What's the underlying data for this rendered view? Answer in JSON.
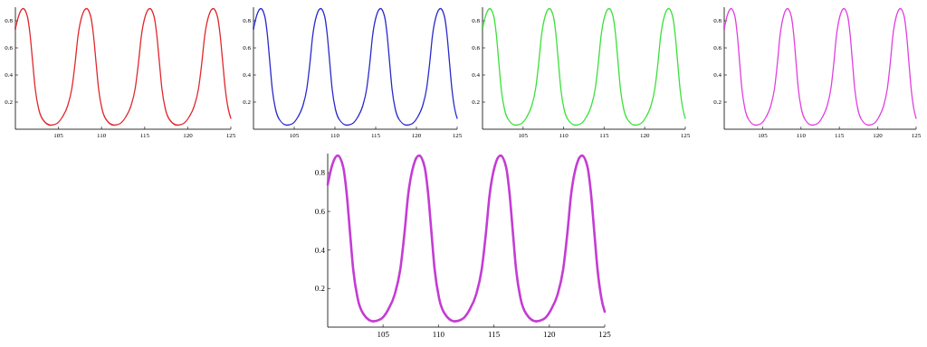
{
  "chart_data": [
    {
      "type": "line",
      "x": [
        100,
        100.4,
        100.9,
        101.4,
        101.7,
        102.0,
        102.3,
        102.7,
        103.2,
        104.1,
        104.75,
        105.45,
        106.05,
        106.55,
        106.95,
        107.25,
        107.75,
        108.25,
        108.75,
        109.05,
        109.35,
        109.65,
        110.05,
        110.55,
        111.45,
        112.1,
        112.8,
        113.4,
        113.9,
        114.3,
        114.6,
        115.1,
        115.6,
        116.1,
        116.4,
        116.7,
        117.0,
        117.4,
        117.9,
        118.8,
        119.45,
        120.15,
        120.75,
        121.25,
        121.65,
        121.95,
        122.45,
        122.95,
        123.45,
        123.75,
        124.05,
        124.35,
        124.7,
        125
      ],
      "series": [
        {
          "color": "#e0282c",
          "values": [
            0.74,
            0.84,
            0.89,
            0.83,
            0.7,
            0.5,
            0.3,
            0.15,
            0.07,
            0.03,
            0.04,
            0.09,
            0.17,
            0.3,
            0.5,
            0.68,
            0.84,
            0.89,
            0.83,
            0.7,
            0.5,
            0.3,
            0.15,
            0.07,
            0.03,
            0.04,
            0.09,
            0.17,
            0.3,
            0.5,
            0.68,
            0.84,
            0.89,
            0.83,
            0.7,
            0.5,
            0.3,
            0.15,
            0.07,
            0.03,
            0.04,
            0.09,
            0.17,
            0.3,
            0.5,
            0.68,
            0.84,
            0.89,
            0.83,
            0.7,
            0.5,
            0.3,
            0.15,
            0.08
          ]
        }
      ],
      "xlim": [
        100,
        125
      ],
      "ylim": [
        0,
        0.9
      ],
      "xticks": [
        105,
        110,
        115,
        120,
        125
      ],
      "yticks": [
        0.2,
        0.4,
        0.6,
        0.8
      ]
    },
    {
      "type": "line",
      "x": [
        100,
        100.4,
        100.9,
        101.4,
        101.7,
        102.0,
        102.3,
        102.7,
        103.2,
        104.1,
        104.75,
        105.45,
        106.05,
        106.55,
        106.95,
        107.25,
        107.75,
        108.25,
        108.75,
        109.05,
        109.35,
        109.65,
        110.05,
        110.55,
        111.45,
        112.1,
        112.8,
        113.4,
        113.9,
        114.3,
        114.6,
        115.1,
        115.6,
        116.1,
        116.4,
        116.7,
        117.0,
        117.4,
        117.9,
        118.8,
        119.45,
        120.15,
        120.75,
        121.25,
        121.65,
        121.95,
        122.45,
        122.95,
        123.45,
        123.75,
        124.05,
        124.35,
        124.7,
        125
      ],
      "series": [
        {
          "color": "#2a2acc",
          "values": [
            0.74,
            0.84,
            0.89,
            0.83,
            0.7,
            0.5,
            0.3,
            0.15,
            0.07,
            0.03,
            0.04,
            0.09,
            0.17,
            0.3,
            0.5,
            0.68,
            0.84,
            0.89,
            0.83,
            0.7,
            0.5,
            0.3,
            0.15,
            0.07,
            0.03,
            0.04,
            0.09,
            0.17,
            0.3,
            0.5,
            0.68,
            0.84,
            0.89,
            0.83,
            0.7,
            0.5,
            0.3,
            0.15,
            0.07,
            0.03,
            0.04,
            0.09,
            0.17,
            0.3,
            0.5,
            0.68,
            0.84,
            0.89,
            0.83,
            0.7,
            0.5,
            0.3,
            0.15,
            0.08
          ]
        }
      ],
      "xlim": [
        100,
        125
      ],
      "ylim": [
        0,
        0.9
      ],
      "xticks": [
        105,
        110,
        115,
        120,
        125
      ],
      "yticks": [
        0.2,
        0.4,
        0.6,
        0.8
      ]
    },
    {
      "type": "line",
      "x": [
        100,
        100.4,
        100.9,
        101.4,
        101.7,
        102.0,
        102.3,
        102.7,
        103.2,
        104.1,
        104.75,
        105.45,
        106.05,
        106.55,
        106.95,
        107.25,
        107.75,
        108.25,
        108.75,
        109.05,
        109.35,
        109.65,
        110.05,
        110.55,
        111.45,
        112.1,
        112.8,
        113.4,
        113.9,
        114.3,
        114.6,
        115.1,
        115.6,
        116.1,
        116.4,
        116.7,
        117.0,
        117.4,
        117.9,
        118.8,
        119.45,
        120.15,
        120.75,
        121.25,
        121.65,
        121.95,
        122.45,
        122.95,
        123.45,
        123.75,
        124.05,
        124.35,
        124.7,
        125
      ],
      "series": [
        {
          "color": "#3ce03c",
          "values": [
            0.74,
            0.84,
            0.89,
            0.83,
            0.7,
            0.5,
            0.3,
            0.15,
            0.07,
            0.03,
            0.04,
            0.09,
            0.17,
            0.3,
            0.5,
            0.68,
            0.84,
            0.89,
            0.83,
            0.7,
            0.5,
            0.3,
            0.15,
            0.07,
            0.03,
            0.04,
            0.09,
            0.17,
            0.3,
            0.5,
            0.68,
            0.84,
            0.89,
            0.83,
            0.7,
            0.5,
            0.3,
            0.15,
            0.07,
            0.03,
            0.04,
            0.09,
            0.17,
            0.3,
            0.5,
            0.68,
            0.84,
            0.89,
            0.83,
            0.7,
            0.5,
            0.3,
            0.15,
            0.08
          ]
        }
      ],
      "xlim": [
        100,
        125
      ],
      "ylim": [
        0,
        0.9
      ],
      "xticks": [
        105,
        110,
        115,
        120,
        125
      ],
      "yticks": [
        0.2,
        0.4,
        0.6,
        0.8
      ]
    },
    {
      "type": "line",
      "x": [
        100,
        100.4,
        100.9,
        101.4,
        101.7,
        102.0,
        102.3,
        102.7,
        103.2,
        104.1,
        104.75,
        105.45,
        106.05,
        106.55,
        106.95,
        107.25,
        107.75,
        108.25,
        108.75,
        109.05,
        109.35,
        109.65,
        110.05,
        110.55,
        111.45,
        112.1,
        112.8,
        113.4,
        113.9,
        114.3,
        114.6,
        115.1,
        115.6,
        116.1,
        116.4,
        116.7,
        117.0,
        117.4,
        117.9,
        118.8,
        119.45,
        120.15,
        120.75,
        121.25,
        121.65,
        121.95,
        122.45,
        122.95,
        123.45,
        123.75,
        124.05,
        124.35,
        124.7,
        125
      ],
      "series": [
        {
          "color": "#e040e0",
          "values": [
            0.74,
            0.84,
            0.89,
            0.83,
            0.7,
            0.5,
            0.3,
            0.15,
            0.07,
            0.03,
            0.04,
            0.09,
            0.17,
            0.3,
            0.5,
            0.68,
            0.84,
            0.89,
            0.83,
            0.7,
            0.5,
            0.3,
            0.15,
            0.07,
            0.03,
            0.04,
            0.09,
            0.17,
            0.3,
            0.5,
            0.68,
            0.84,
            0.89,
            0.83,
            0.7,
            0.5,
            0.3,
            0.15,
            0.07,
            0.03,
            0.04,
            0.09,
            0.17,
            0.3,
            0.5,
            0.68,
            0.84,
            0.89,
            0.83,
            0.7,
            0.5,
            0.3,
            0.15,
            0.08
          ]
        }
      ],
      "xlim": [
        100,
        125
      ],
      "ylim": [
        0,
        0.9
      ],
      "xticks": [
        105,
        110,
        115,
        120,
        125
      ],
      "yticks": [
        0.2,
        0.4,
        0.6,
        0.8
      ]
    },
    {
      "type": "line",
      "x": [
        100,
        100.4,
        100.9,
        101.4,
        101.7,
        102.0,
        102.3,
        102.7,
        103.2,
        104.1,
        104.75,
        105.45,
        106.05,
        106.55,
        106.95,
        107.25,
        107.75,
        108.25,
        108.75,
        109.05,
        109.35,
        109.65,
        110.05,
        110.55,
        111.45,
        112.1,
        112.8,
        113.4,
        113.9,
        114.3,
        114.6,
        115.1,
        115.6,
        116.1,
        116.4,
        116.7,
        117.0,
        117.4,
        117.9,
        118.8,
        119.45,
        120.15,
        120.75,
        121.25,
        121.65,
        121.95,
        122.45,
        122.95,
        123.45,
        123.75,
        124.05,
        124.35,
        124.7,
        125
      ],
      "series": [
        {
          "color": "#c43cd4",
          "values": [
            0.74,
            0.84,
            0.89,
            0.83,
            0.7,
            0.5,
            0.3,
            0.15,
            0.07,
            0.03,
            0.04,
            0.09,
            0.17,
            0.3,
            0.5,
            0.68,
            0.84,
            0.89,
            0.83,
            0.7,
            0.5,
            0.3,
            0.15,
            0.07,
            0.03,
            0.04,
            0.09,
            0.17,
            0.3,
            0.5,
            0.68,
            0.84,
            0.89,
            0.83,
            0.7,
            0.5,
            0.3,
            0.15,
            0.07,
            0.03,
            0.04,
            0.09,
            0.17,
            0.3,
            0.5,
            0.68,
            0.84,
            0.89,
            0.83,
            0.7,
            0.5,
            0.3,
            0.15,
            0.08
          ]
        }
      ],
      "xlim": [
        100,
        125
      ],
      "ylim": [
        0,
        0.9
      ],
      "xticks": [
        105,
        110,
        115,
        120,
        125
      ],
      "yticks": [
        0.2,
        0.4,
        0.6,
        0.8
      ]
    }
  ]
}
